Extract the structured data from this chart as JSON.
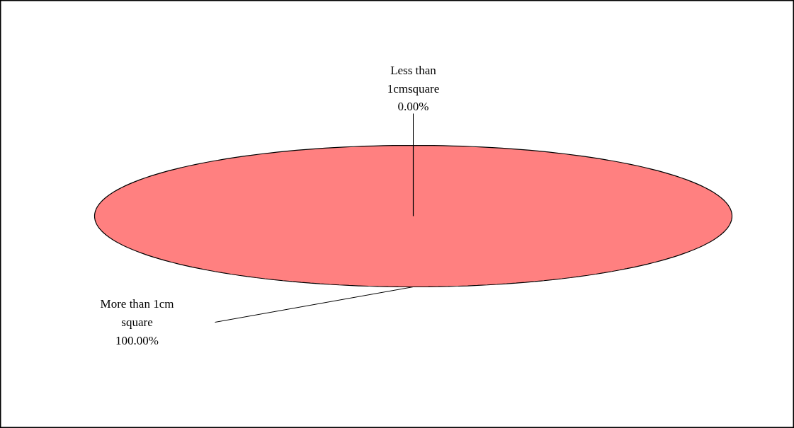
{
  "chart_data": {
    "type": "pie",
    "categories": [
      "Less than 1cmsquare",
      "More than 1cm square"
    ],
    "values": [
      0,
      100
    ],
    "colors": [
      "#ff8080",
      "#ff8080"
    ],
    "value_labels": [
      "0.00%",
      "100.00%"
    ]
  }
}
